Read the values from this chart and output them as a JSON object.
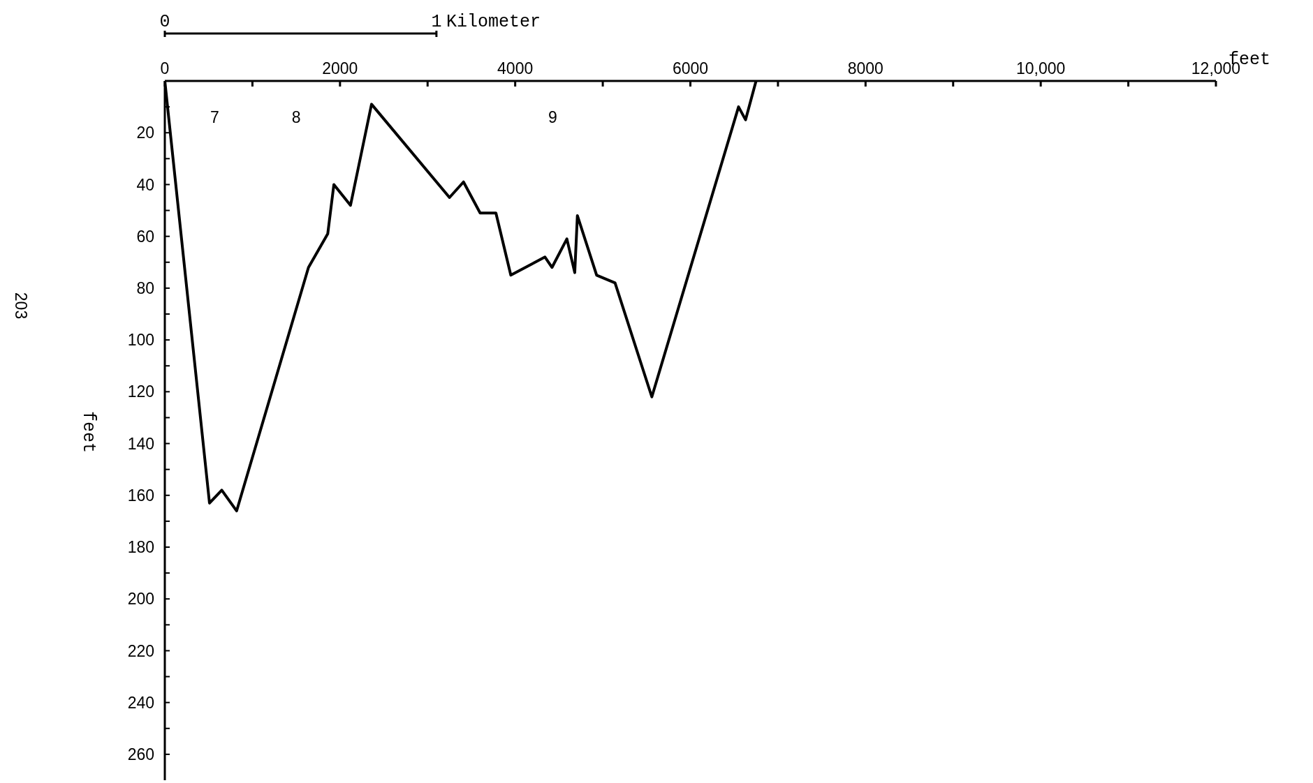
{
  "chart_data": {
    "type": "line",
    "x": [
      0,
      510,
      650,
      820,
      1640,
      1860,
      1930,
      2120,
      2360,
      3250,
      3410,
      3600,
      3780,
      3950,
      4340,
      4420,
      4590,
      4680,
      4710,
      4930,
      5140,
      5560,
      6550,
      6630,
      6750
    ],
    "values": [
      0,
      163,
      158,
      166,
      72,
      59,
      40,
      48,
      9,
      45,
      39,
      51,
      51,
      75,
      68,
      72,
      61,
      74,
      52,
      75,
      78,
      122,
      10,
      15,
      0
    ],
    "color": "#000000",
    "xlabel": "feet",
    "ylabel": "feet",
    "xlim": [
      0,
      12000
    ],
    "xticks": [
      0,
      {
        "value": 1000,
        "label": null
      },
      2000,
      {
        "value": 3000,
        "label": null
      },
      4000,
      {
        "value": 5000,
        "label": null
      },
      6000,
      {
        "value": 7000,
        "label": null
      },
      8000,
      {
        "value": 9000,
        "label": null
      },
      {
        "value": 10000,
        "label": "10,000"
      },
      {
        "value": 11000,
        "label": null
      },
      {
        "value": 12000,
        "label": "12,000"
      }
    ],
    "ylim": [
      270,
      0
    ],
    "yticks": [
      {
        "value": 10,
        "label": null
      },
      20,
      {
        "value": 30,
        "label": null
      },
      40,
      {
        "value": 50,
        "label": null
      },
      60,
      {
        "value": 70,
        "label": null
      },
      80,
      {
        "value": 90,
        "label": null
      },
      100,
      {
        "value": 110,
        "label": null
      },
      120,
      {
        "value": 130,
        "label": null
      },
      140,
      {
        "value": 150,
        "label": null
      },
      160,
      {
        "value": 170,
        "label": null
      },
      180,
      {
        "value": 190,
        "label": null
      },
      200,
      {
        "value": 210,
        "label": null
      },
      220,
      {
        "value": 230,
        "label": null
      },
      240,
      {
        "value": 250,
        "label": null
      },
      260
    ],
    "x2lim": [
      0,
      3.87
    ],
    "x2ticks": [
      0,
      1
    ],
    "x2label": "Kilometer",
    "annotations": [
      "7",
      "8",
      "9",
      "203"
    ],
    "grid": false,
    "legend": false,
    "marker": "none",
    "line_style": "solid"
  }
}
